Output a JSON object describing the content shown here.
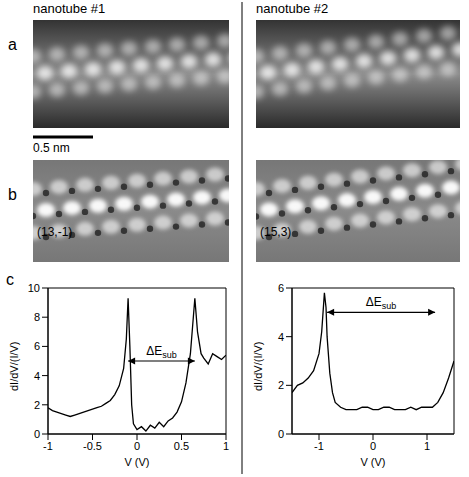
{
  "columns": [
    "nanotube #1",
    "nanotube #2"
  ],
  "panel_letters": [
    "a",
    "b",
    "c"
  ],
  "scale_bar": "0.5 nm",
  "chirality": [
    "(13,-1)",
    "(15,3)"
  ],
  "chart_data": [
    {
      "type": "line",
      "xlabel": "V (V)",
      "ylabel": "dI/dV/(I/V)",
      "color": "#000000",
      "x": [
        -1,
        -0.95,
        -0.9,
        -0.85,
        -0.8,
        -0.75,
        -0.7,
        -0.65,
        -0.6,
        -0.55,
        -0.5,
        -0.45,
        -0.4,
        -0.35,
        -0.3,
        -0.25,
        -0.2,
        -0.15,
        -0.12,
        -0.1,
        -0.08,
        -0.06,
        -0.04,
        0,
        0.05,
        0.1,
        0.15,
        0.2,
        0.25,
        0.3,
        0.35,
        0.4,
        0.45,
        0.5,
        0.55,
        0.6,
        0.65,
        0.68,
        0.72,
        0.75,
        0.8,
        0.85,
        0.9,
        0.95,
        1
      ],
      "values": [
        1.8,
        1.6,
        1.5,
        1.4,
        1.3,
        1.2,
        1.3,
        1.4,
        1.5,
        1.6,
        1.7,
        1.8,
        1.9,
        2.1,
        2.3,
        2.7,
        3.3,
        4.5,
        6.5,
        9.3,
        6,
        2,
        0.7,
        0.3,
        0.5,
        0.2,
        0.6,
        0.4,
        0.8,
        0.5,
        0.9,
        1.1,
        1.5,
        2.2,
        3.5,
        5.5,
        9.3,
        7,
        5.5,
        5.2,
        4.8,
        5.5,
        5.3,
        5.1,
        5.4
      ],
      "xlim": [
        -1,
        1
      ],
      "xticks": [
        -1,
        -0.5,
        0,
        0.5,
        1
      ],
      "ylim": [
        0,
        10
      ],
      "yticks": [
        0,
        2,
        4,
        6,
        8,
        10
      ],
      "annotation": {
        "text": "ΔE",
        "subscript": "sub",
        "x": [
          -0.1,
          0.65
        ],
        "y": 5
      }
    },
    {
      "type": "line",
      "xlabel": "V (V)",
      "ylabel": "dI/dV/(I/V)",
      "color": "#000000",
      "x": [
        -1.5,
        -1.4,
        -1.3,
        -1.2,
        -1.1,
        -1,
        -0.95,
        -0.9,
        -0.87,
        -0.85,
        -0.8,
        -0.75,
        -0.7,
        -0.6,
        -0.5,
        -0.4,
        -0.3,
        -0.2,
        -0.1,
        0,
        0.1,
        0.2,
        0.3,
        0.4,
        0.5,
        0.6,
        0.7,
        0.8,
        0.9,
        1,
        1.1,
        1.2,
        1.3,
        1.4,
        1.5
      ],
      "values": [
        1.7,
        2,
        2.1,
        2.3,
        2.6,
        3.3,
        4.2,
        5.8,
        5.2,
        4,
        2.5,
        1.7,
        1.3,
        1.1,
        1,
        1,
        1,
        1.1,
        1.1,
        1,
        1,
        1.1,
        1.1,
        1,
        1,
        1,
        1.1,
        1,
        1.1,
        1.1,
        1.1,
        1.3,
        1.7,
        2.3,
        3
      ],
      "xlim": [
        -1.5,
        1.5
      ],
      "xticks": [
        -1,
        0,
        1
      ],
      "ylim": [
        0,
        6
      ],
      "yticks": [
        0,
        2,
        4,
        6
      ],
      "annotation": {
        "text": "ΔE",
        "subscript": "sub",
        "x": [
          -0.85,
          1.15
        ],
        "y": 5
      }
    }
  ]
}
